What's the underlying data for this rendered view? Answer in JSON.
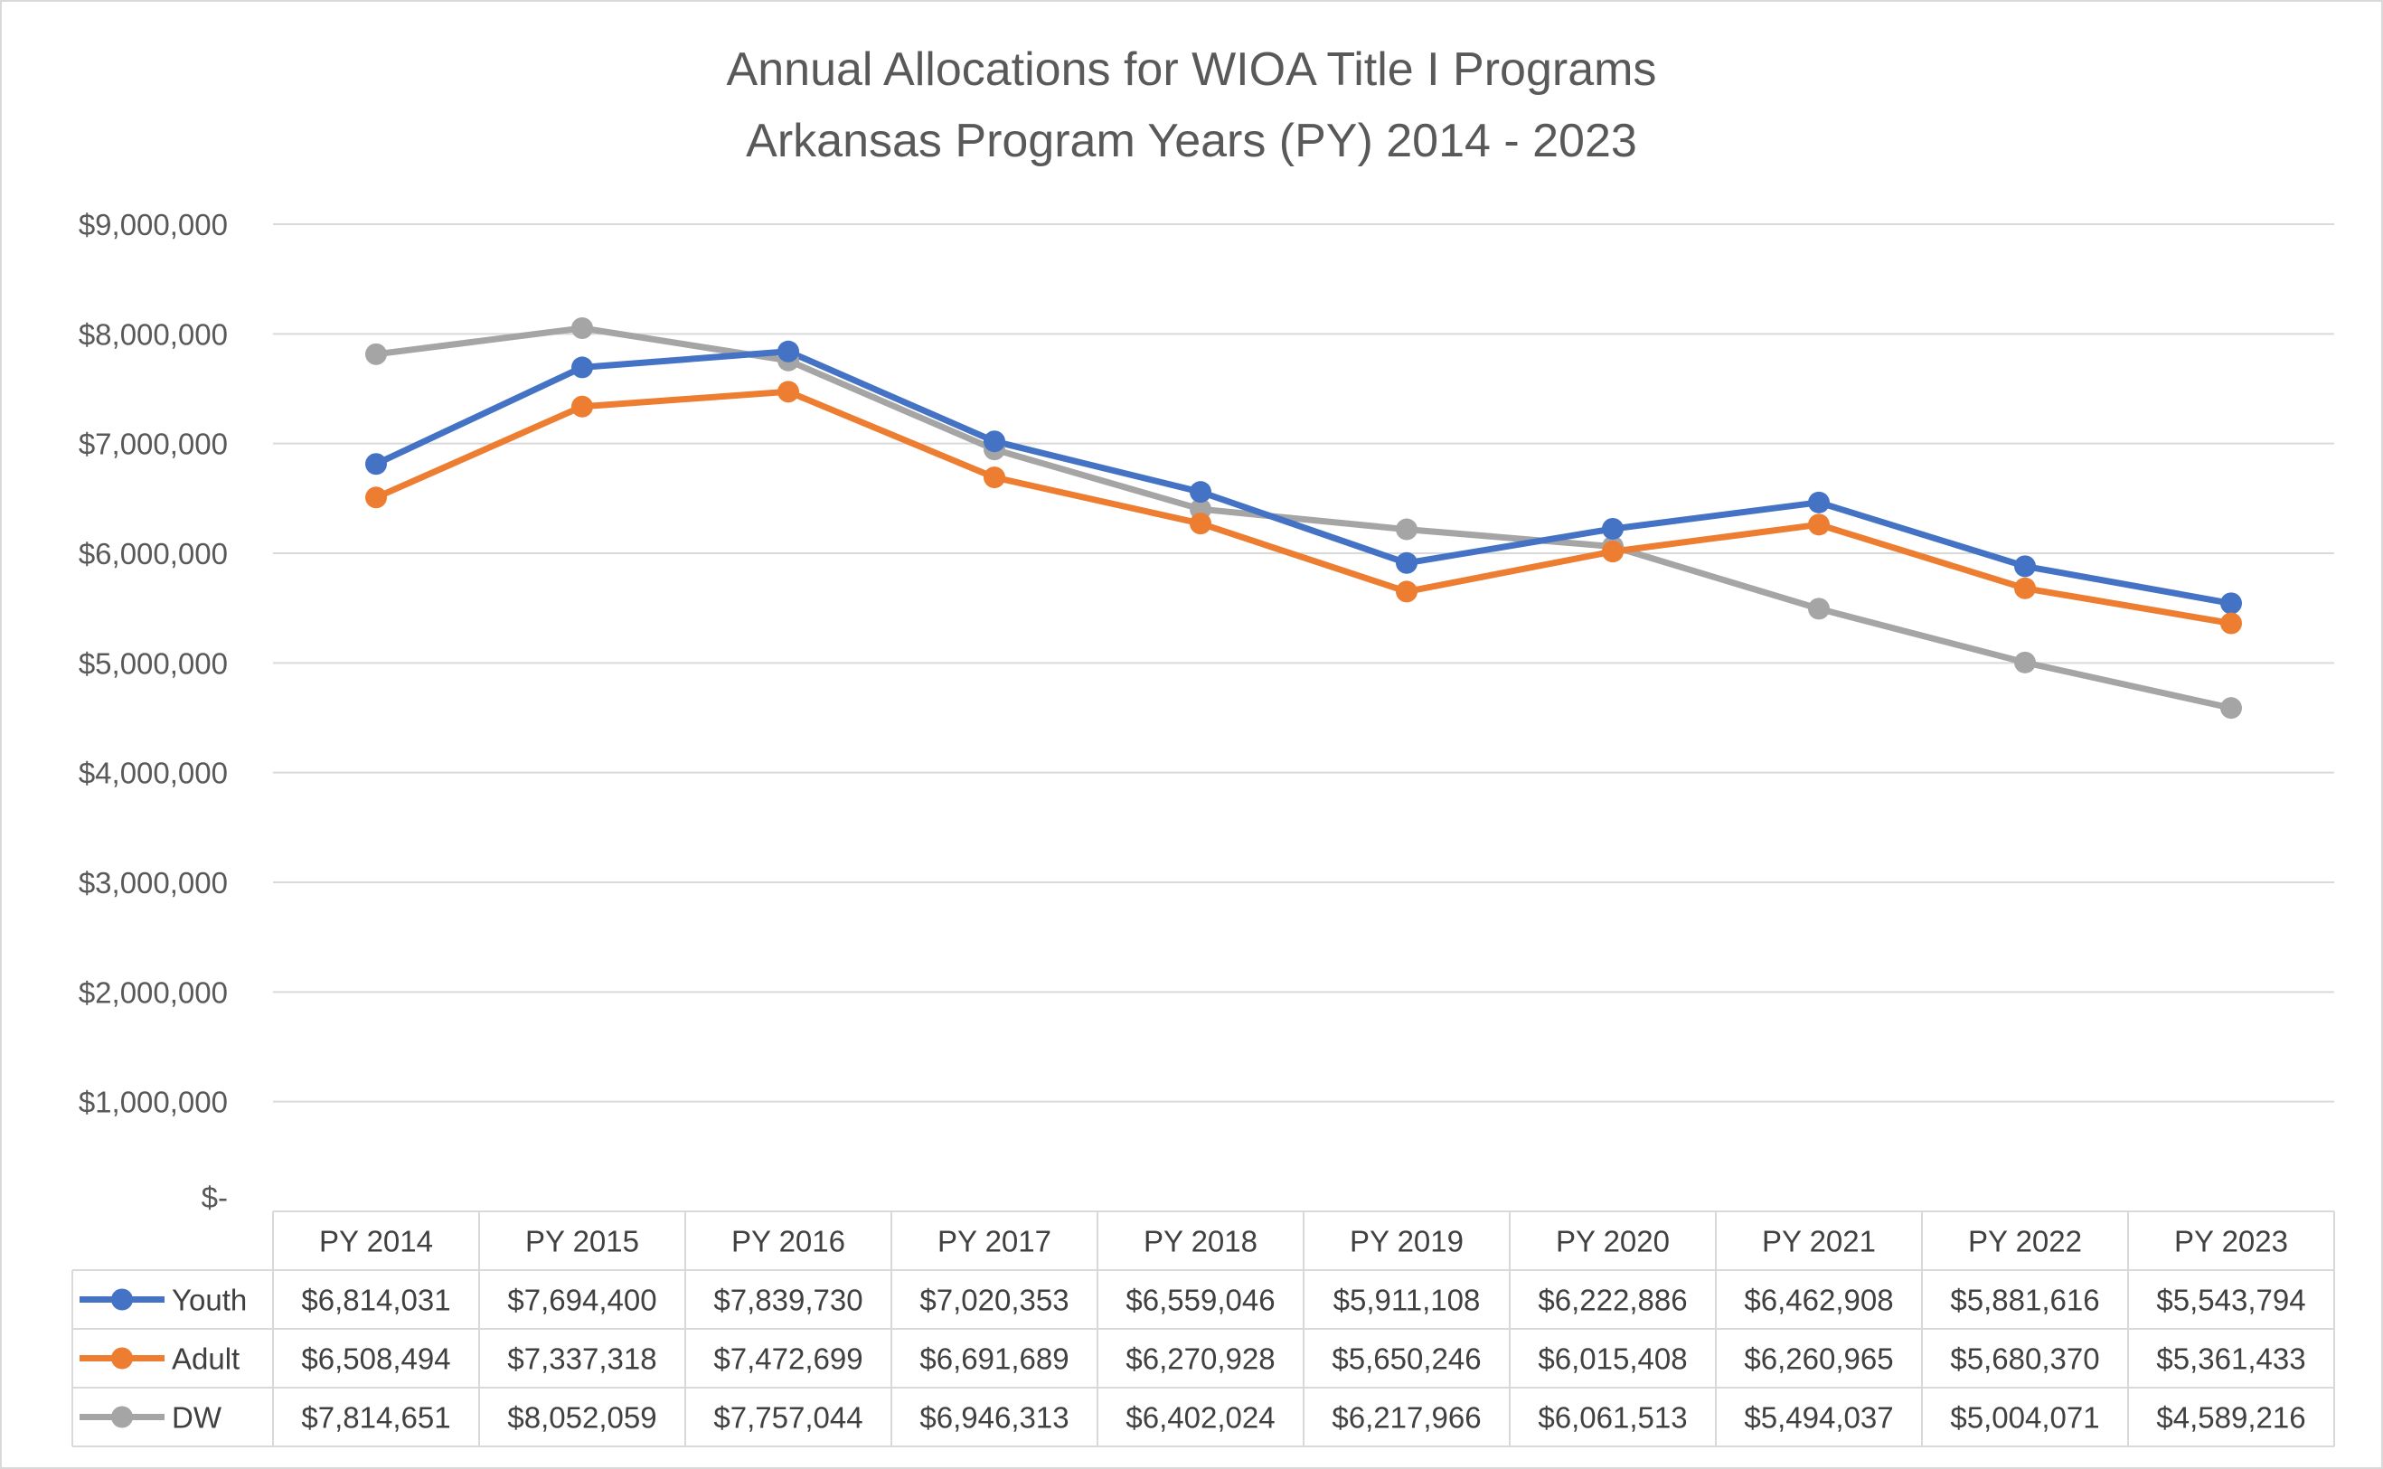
{
  "chart_data": {
    "type": "line",
    "title": "Annual Allocations for WIOA Title I Programs",
    "subtitle": "Arkansas Program Years (PY) 2014 - 2023",
    "categories": [
      "PY 2014",
      "PY 2015",
      "PY 2016",
      "PY 2017",
      "PY 2018",
      "PY 2019",
      "PY 2020",
      "PY 2021",
      "PY 2022",
      "PY 2023"
    ],
    "ylim": [
      0,
      9000000
    ],
    "y_ticks": [
      {
        "value": 0,
        "label": "$-"
      },
      {
        "value": 1000000,
        "label": "$1,000,000"
      },
      {
        "value": 2000000,
        "label": "$2,000,000"
      },
      {
        "value": 3000000,
        "label": "$3,000,000"
      },
      {
        "value": 4000000,
        "label": "$4,000,000"
      },
      {
        "value": 5000000,
        "label": "$5,000,000"
      },
      {
        "value": 6000000,
        "label": "$6,000,000"
      },
      {
        "value": 7000000,
        "label": "$7,000,000"
      },
      {
        "value": 8000000,
        "label": "$8,000,000"
      },
      {
        "value": 9000000,
        "label": "$9,000,000"
      }
    ],
    "grid": true,
    "legend": "data-table",
    "series": [
      {
        "name": "Youth",
        "color": "#4472C4",
        "values": [
          6814031,
          7694400,
          7839730,
          7020353,
          6559046,
          5911108,
          6222886,
          6462908,
          5881616,
          5543794
        ],
        "labels": [
          "$6,814,031",
          "$7,694,400",
          "$7,839,730",
          "$7,020,353",
          "$6,559,046",
          "$5,911,108",
          "$6,222,886",
          "$6,462,908",
          "$5,881,616",
          "$5,543,794"
        ]
      },
      {
        "name": "Adult",
        "color": "#ED7D31",
        "values": [
          6508494,
          7337318,
          7472699,
          6691689,
          6270928,
          5650246,
          6015408,
          6260965,
          5680370,
          5361433
        ],
        "labels": [
          "$6,508,494",
          "$7,337,318",
          "$7,472,699",
          "$6,691,689",
          "$6,270,928",
          "$5,650,246",
          "$6,015,408",
          "$6,260,965",
          "$5,680,370",
          "$5,361,433"
        ]
      },
      {
        "name": "DW",
        "color": "#A5A5A5",
        "values": [
          7814651,
          8052059,
          7757044,
          6946313,
          6402024,
          6217966,
          6061513,
          5494037,
          5004071,
          4589216
        ],
        "labels": [
          "$7,814,651",
          "$8,052,059",
          "$7,757,044",
          "$6,946,313",
          "$6,402,024",
          "$6,217,966",
          "$6,061,513",
          "$5,494,037",
          "$5,004,071",
          "$4,589,216"
        ]
      }
    ]
  }
}
